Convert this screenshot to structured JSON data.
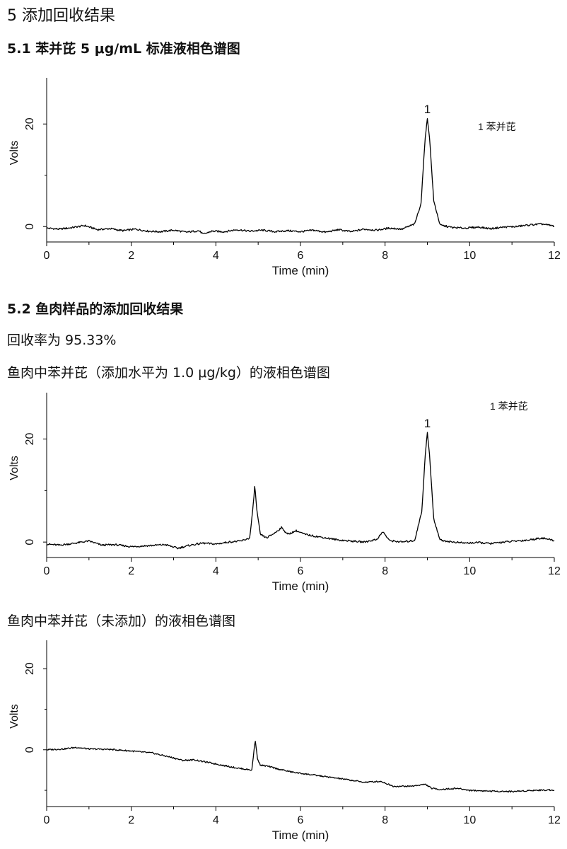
{
  "section": {
    "title": "5 添加回收结果"
  },
  "sub1": {
    "title": "5.1 苯并芘 5 μg/mL 标准液相色谱图"
  },
  "sub2": {
    "title": "5.2  鱼肉样品的添加回收结果",
    "recovery": "回收率为 95.33%",
    "caption_spiked": "鱼肉中苯并芘（添加水平为 1.0 μg/kg）的液相色谱图",
    "caption_blank": "鱼肉中苯并芘（未添加）的液相色谱图"
  },
  "chart_data": [
    {
      "type": "line",
      "xlabel": "Time (min)",
      "ylabel": "Volts",
      "xlim": [
        0,
        12
      ],
      "ylim": [
        -3,
        29
      ],
      "xticks": [
        "0",
        "2",
        "4",
        "6",
        "8",
        "10",
        "12"
      ],
      "yticks": [
        "0",
        "20"
      ],
      "legend": "1 苯并芘",
      "peak_labels": [
        {
          "x": 9.0,
          "text": "1"
        }
      ],
      "series": [
        {
          "x": [
            0,
            0.3,
            0.6,
            0.9,
            1.2,
            1.5,
            1.8,
            2.1,
            2.4,
            2.7,
            3.0,
            3.3,
            3.6,
            3.7,
            3.9,
            4.2,
            4.5,
            4.8,
            5.1,
            5.4,
            5.7,
            6.0,
            6.3,
            6.6,
            6.9,
            7.2,
            7.5,
            7.8,
            8.1,
            8.4,
            8.7,
            8.85,
            8.95,
            9.0,
            9.05,
            9.15,
            9.3,
            9.6,
            9.9,
            10.2,
            10.5,
            10.8,
            11.1,
            11.4,
            11.7,
            12.0
          ],
          "y": [
            -0.3,
            -0.5,
            -0.2,
            0.2,
            -0.6,
            -0.4,
            -0.8,
            -0.5,
            -0.9,
            -1.0,
            -0.7,
            -1.1,
            -0.8,
            -1.5,
            -0.9,
            -1.0,
            -0.6,
            -0.9,
            -0.7,
            -1.0,
            -0.8,
            -1.0,
            -0.7,
            -1.1,
            -0.6,
            -1.0,
            -0.5,
            -0.7,
            -0.3,
            -0.5,
            0.5,
            4.5,
            17.5,
            21.0,
            17.5,
            5.0,
            0.3,
            -0.2,
            -0.3,
            -0.1,
            -0.4,
            -0.1,
            0.0,
            0.3,
            0.5,
            0.1
          ]
        }
      ]
    },
    {
      "type": "line",
      "xlabel": "Time (min)",
      "ylabel": "Volts",
      "xlim": [
        0,
        12
      ],
      "ylim": [
        -3,
        29
      ],
      "xticks": [
        "0",
        "2",
        "4",
        "6",
        "8",
        "10",
        "12"
      ],
      "yticks": [
        "0",
        "20"
      ],
      "legend": "1 苯并芘",
      "peak_labels": [
        {
          "x": 9.0,
          "text": "1"
        }
      ],
      "series": [
        {
          "x": [
            0,
            0.3,
            0.6,
            1.0,
            1.3,
            1.6,
            2.0,
            2.4,
            2.8,
            3.1,
            3.4,
            3.7,
            4.0,
            4.3,
            4.6,
            4.8,
            4.87,
            4.92,
            4.97,
            5.05,
            5.2,
            5.4,
            5.55,
            5.7,
            5.9,
            6.1,
            6.3,
            6.6,
            6.9,
            7.2,
            7.5,
            7.8,
            7.95,
            8.1,
            8.4,
            8.7,
            8.87,
            8.95,
            9.0,
            9.05,
            9.15,
            9.3,
            9.6,
            9.9,
            10.2,
            10.5,
            10.8,
            11.1,
            11.4,
            11.7,
            12.0
          ],
          "y": [
            -0.4,
            -0.6,
            -0.3,
            0.2,
            -0.6,
            -0.5,
            -0.9,
            -0.7,
            -0.5,
            -1.2,
            -0.6,
            -0.2,
            -0.4,
            0.0,
            0.2,
            0.8,
            6.0,
            11.0,
            6.0,
            1.5,
            0.8,
            1.8,
            2.8,
            1.5,
            2.2,
            1.5,
            1.2,
            0.8,
            0.4,
            0.2,
            0.0,
            0.5,
            2.0,
            0.3,
            0.0,
            0.3,
            6.0,
            17.0,
            21.2,
            17.0,
            4.5,
            0.4,
            0.0,
            -0.2,
            -0.1,
            -0.3,
            0.0,
            0.2,
            0.4,
            0.8,
            0.3
          ]
        }
      ]
    },
    {
      "type": "line",
      "xlabel": "Time (min)",
      "ylabel": "Volts",
      "xlim": [
        0,
        12
      ],
      "ylim": [
        -14,
        27
      ],
      "xticks": [
        "0",
        "2",
        "4",
        "6",
        "8",
        "10",
        "12"
      ],
      "yticks": [
        "0",
        "20"
      ],
      "series": [
        {
          "x": [
            0,
            0.4,
            0.7,
            1.0,
            1.5,
            2.0,
            2.5,
            3.0,
            3.2,
            3.5,
            4.0,
            4.5,
            4.85,
            4.93,
            4.98,
            5.05,
            5.2,
            5.5,
            5.8,
            6.0,
            6.5,
            7.0,
            7.5,
            7.9,
            8.2,
            8.6,
            8.95,
            9.1,
            9.3,
            9.7,
            10.0,
            10.5,
            11.0,
            11.5,
            12.0
          ],
          "y": [
            0.0,
            0.2,
            0.6,
            0.2,
            0.1,
            -0.3,
            -0.8,
            -2.0,
            -2.6,
            -2.5,
            -3.5,
            -4.5,
            -5.0,
            2.5,
            -2.0,
            -3.8,
            -4.0,
            -4.8,
            -5.5,
            -5.8,
            -6.5,
            -7.2,
            -8.0,
            -7.8,
            -9.0,
            -9.0,
            -8.5,
            -9.5,
            -9.8,
            -9.5,
            -10.0,
            -10.2,
            -10.3,
            -10.0,
            -9.9
          ]
        }
      ]
    }
  ]
}
